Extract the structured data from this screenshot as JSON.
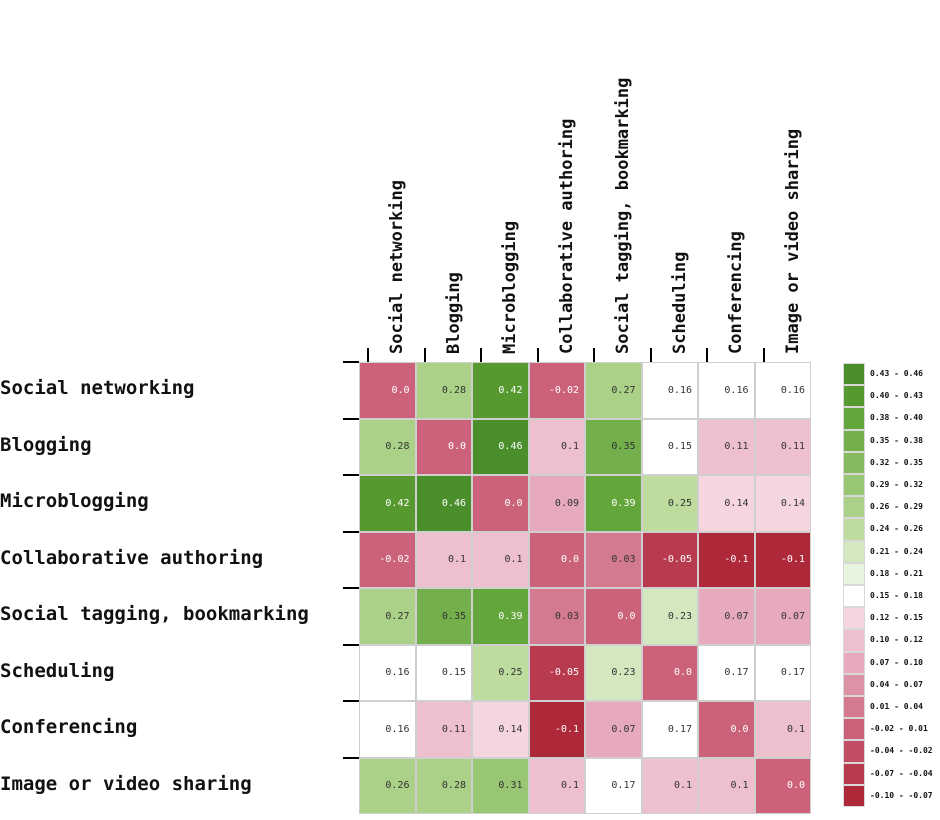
{
  "chart_data": {
    "type": "heatmap",
    "rows": [
      "Social networking",
      "Blogging",
      "Microblogging",
      "Collaborative authoring",
      "Social tagging, bookmarking",
      "Scheduling",
      "Conferencing",
      "Image or video sharing"
    ],
    "columns": [
      "Social networking",
      "Blogging",
      "Microblogging",
      "Collaborative authoring",
      "Social tagging, bookmarking",
      "Scheduling",
      "Conferencing",
      "Image or video sharing"
    ],
    "values": [
      [
        "0.0",
        "0.28",
        "0.42",
        "-0.02",
        "0.27",
        "0.16",
        "0.16",
        "0.16"
      ],
      [
        "0.28",
        "0.0",
        "0.46",
        "0.1",
        "0.35",
        "0.15",
        "0.11",
        "0.11"
      ],
      [
        "0.42",
        "0.46",
        "0.0",
        "0.09",
        "0.39",
        "0.25",
        "0.14",
        "0.14"
      ],
      [
        "-0.02",
        "0.1",
        "0.1",
        "0.0",
        "0.03",
        "-0.05",
        "-0.1",
        "-0.1"
      ],
      [
        "0.27",
        "0.35",
        "0.39",
        "0.03",
        "0.0",
        "0.23",
        "0.07",
        "0.07"
      ],
      [
        "0.16",
        "0.15",
        "0.25",
        "-0.05",
        "0.23",
        "0.0",
        "0.17",
        "0.17"
      ],
      [
        "0.16",
        "0.11",
        "0.14",
        "-0.1",
        "0.07",
        "0.17",
        "0.0",
        "0.1"
      ],
      [
        "0.26",
        "0.28",
        "0.31",
        "0.1",
        "0.17",
        "0.1",
        "0.1",
        "0.0"
      ]
    ],
    "legend": {
      "placement": "right",
      "bins": [
        {
          "label": "0.43 - 0.46",
          "color": "#4a8f2c"
        },
        {
          "label": "0.40 - 0.43",
          "color": "#56992f"
        },
        {
          "label": "0.38 - 0.40",
          "color": "#63a63c"
        },
        {
          "label": "0.35 - 0.38",
          "color": "#73b04b"
        },
        {
          "label": "0.32 - 0.35",
          "color": "#85bb5e"
        },
        {
          "label": "0.29 - 0.32",
          "color": "#98c672"
        },
        {
          "label": "0.26 - 0.29",
          "color": "#aad187"
        },
        {
          "label": "0.24 - 0.26",
          "color": "#bddc9e"
        },
        {
          "label": "0.21 - 0.24",
          "color": "#d3e8bf"
        },
        {
          "label": "0.18 - 0.21",
          "color": "#e8f4dd"
        },
        {
          "label": "0.15 - 0.18",
          "color": "#ffffff"
        },
        {
          "label": "0.12 - 0.15",
          "color": "#f5d6df"
        },
        {
          "label": "0.10 - 0.12",
          "color": "#eec0cd"
        },
        {
          "label": "0.07 - 0.10",
          "color": "#e6aabc"
        },
        {
          "label": "0.04 - 0.07",
          "color": "#dd92a6"
        },
        {
          "label": "0.01 - 0.04",
          "color": "#d47a90"
        },
        {
          "label": "-0.02 - 0.01",
          "color": "#cb627a"
        },
        {
          "label": "-0.04 - -0.02",
          "color": "#c24d64"
        },
        {
          "label": "-0.07 - -0.04",
          "color": "#b83a4e"
        },
        {
          "label": "-0.10 - -0.07",
          "color": "#ad2838"
        }
      ]
    },
    "grid": true
  }
}
